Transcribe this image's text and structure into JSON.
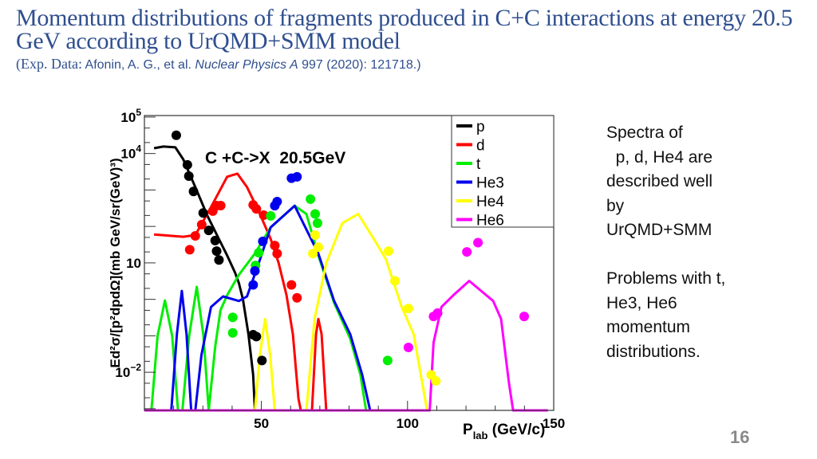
{
  "slide": {
    "title": "Momentum distributions of fragments produced in C+C interactions at energy 20.5 GeV according to UrQMD+SMM model",
    "subtitle_prefix": "(Exp. Data:",
    "subtitle_authors": " Afonin, A. G., et al. ",
    "subtitle_journal": "Nuclear Physics A",
    "subtitle_ref": " 997 (2020): 121718.)",
    "side_text_1": "Spectra of\n  p, d, He4 are\ndescribed well\nby\nUrQMD+SMM",
    "side_text_2": "Problems with t,\nHe3, He6\nmomentum\ndistributions.",
    "page_number": "16"
  },
  "chart_data": {
    "type": "line",
    "annotation": "C +C->X  20.5GeV",
    "xlabel": "P",
    "xlabel_sub": "lab",
    "xlabel_unit": " (GeV/c)",
    "ylabel": "Ed²σ/[p²dpdΩ](mb GeV/sr(GeV)³)",
    "xlim": [
      10,
      150
    ],
    "ylim": [
      0.0009,
      110000
    ],
    "yscale": "log",
    "grid": false,
    "legend_position": "top-right",
    "x_ticks": [
      "50",
      "100",
      "150"
    ],
    "x_tick_values": [
      50,
      100,
      150
    ],
    "y_ticks": [
      {
        "value": 100000,
        "base": "10",
        "exp": "5"
      },
      {
        "value": 10000,
        "base": "10",
        "exp": "4"
      },
      {
        "value": 10,
        "base": "10",
        "exp": ""
      },
      {
        "value": 0.01,
        "base": "10",
        "exp": "−2"
      }
    ],
    "series": [
      {
        "name": "p",
        "color": "#000000",
        "curve": [
          [
            13.3,
            14000
          ],
          [
            16.5,
            15500
          ],
          [
            20.6,
            14800
          ],
          [
            23.3,
            6900
          ],
          [
            27.4,
            1200
          ],
          [
            31.5,
            200
          ],
          [
            35.5,
            45
          ],
          [
            38.3,
            16
          ],
          [
            41,
            5.4
          ],
          [
            42.3,
            2.8
          ],
          [
            43.7,
            1.0
          ],
          [
            45.6,
            0.11
          ],
          [
            47.2,
            0.0085
          ],
          [
            47.8,
            0.0009
          ]
        ],
        "points": [
          [
            20.9,
            31600
          ],
          [
            24.7,
            4900
          ],
          [
            25.2,
            2400
          ],
          [
            26.8,
            910
          ],
          [
            30.1,
            234
          ],
          [
            32,
            78
          ],
          [
            34.2,
            41
          ],
          [
            34.7,
            21
          ],
          [
            35.5,
            12
          ],
          [
            47.2,
            0.107
          ],
          [
            48.3,
            0.095
          ],
          [
            50.2,
            0.021
          ]
        ]
      },
      {
        "name": "d",
        "color": "#ff0000",
        "curve": [
          [
            13.3,
            60
          ],
          [
            23.3,
            52
          ],
          [
            27.4,
            58
          ],
          [
            32.8,
            340
          ],
          [
            38.3,
            2300
          ],
          [
            41.8,
            2800
          ],
          [
            45.1,
            1200
          ],
          [
            49.1,
            260
          ],
          [
            53.2,
            45
          ],
          [
            55.9,
            10
          ],
          [
            58.6,
            1.3
          ],
          [
            60.8,
            0.11
          ],
          [
            62.7,
            0.0019
          ],
          [
            63.5,
            0.0009
          ],
          [
            67.3,
            0.0009
          ],
          [
            68.7,
            0.11
          ],
          [
            69.5,
            0.29
          ],
          [
            70.6,
            0.11
          ],
          [
            72.2,
            0.0009
          ]
        ],
        "points": [
          [
            25.5,
            23
          ],
          [
            27.4,
            55
          ],
          [
            29.6,
            112
          ],
          [
            33.4,
            263
          ],
          [
            34.7,
            372
          ],
          [
            36.1,
            372
          ],
          [
            47.2,
            389
          ],
          [
            48.3,
            302
          ],
          [
            50.8,
            204
          ],
          [
            54.6,
            30
          ],
          [
            55.4,
            18
          ],
          [
            60.3,
            2.5
          ],
          [
            62.2,
            1.1
          ]
        ]
      },
      {
        "name": "t",
        "color": "#00ee00",
        "curve": [
          [
            12.4,
            0.0009
          ],
          [
            14.5,
            0.1
          ],
          [
            17,
            0.93
          ],
          [
            19.5,
            0.1
          ],
          [
            21.5,
            0.0009
          ],
          [
            23,
            0.0009
          ],
          [
            25.3,
            0.1
          ],
          [
            27.9,
            2.2
          ],
          [
            30.2,
            0.1
          ],
          [
            32,
            0.0009
          ],
          [
            34.2,
            0.05
          ],
          [
            36,
            0.5
          ],
          [
            38.3,
            1.3
          ],
          [
            42.3,
            4.7
          ],
          [
            47.8,
            18
          ],
          [
            53.2,
            95
          ],
          [
            61.4,
            370
          ],
          [
            65.4,
            220
          ],
          [
            69.5,
            16
          ],
          [
            74.9,
            0.8
          ],
          [
            80.4,
            0.083
          ],
          [
            83.9,
            0.0085
          ],
          [
            85.8,
            0.0009
          ]
        ],
        "points": [
          [
            40.2,
            0.32
          ],
          [
            40.2,
            0.12
          ],
          [
            48,
            8.5
          ],
          [
            49.1,
            19
          ],
          [
            53.2,
            195
          ],
          [
            66.8,
            560
          ],
          [
            68.4,
            220
          ],
          [
            69.2,
            123
          ],
          [
            93.2,
            0.021
          ]
        ]
      },
      {
        "name": "He3",
        "color": "#0000ee",
        "curve": [
          [
            19.2,
            0.0009
          ],
          [
            21.1,
            0.11
          ],
          [
            22.8,
            1.7
          ],
          [
            24.4,
            0.11
          ],
          [
            26,
            0.0009
          ],
          [
            27.4,
            0.0009
          ],
          [
            29.5,
            0.03
          ],
          [
            32.8,
            0.62
          ],
          [
            36.9,
            1.2
          ],
          [
            42.3,
            0.9
          ],
          [
            45.1,
            1.2
          ],
          [
            49.1,
            9.8
          ],
          [
            53.2,
            95
          ],
          [
            61.4,
            370
          ],
          [
            69.5,
            18
          ],
          [
            74.9,
            0.9
          ],
          [
            80.4,
            0.11
          ],
          [
            84.5,
            0.0085
          ],
          [
            87.2,
            0.0009
          ]
        ],
        "points": [
          [
            47.2,
            2.5
          ],
          [
            47.8,
            6
          ],
          [
            50.5,
            39
          ],
          [
            54.6,
            370
          ],
          [
            55.4,
            480
          ],
          [
            60.3,
            2100
          ],
          [
            62.2,
            2300
          ]
        ]
      },
      {
        "name": "He4",
        "color": "#ffff00",
        "curve": [
          [
            47.8,
            0.0009
          ],
          [
            49.5,
            0.03
          ],
          [
            51.3,
            0.29
          ],
          [
            53,
            0.03
          ],
          [
            54.6,
            0.0009
          ],
          [
            65.4,
            0.0009
          ],
          [
            68.2,
            0.29
          ],
          [
            72.2,
            10
          ],
          [
            77.7,
            123
          ],
          [
            83.1,
            220
          ],
          [
            88.5,
            45
          ],
          [
            92.6,
            12.6
          ],
          [
            98,
            0.62
          ],
          [
            102.1,
            0.11
          ],
          [
            106.7,
            0.0009
          ]
        ],
        "points": [
          [
            68.4,
            58
          ],
          [
            67.6,
            18
          ],
          [
            69.5,
            27
          ],
          [
            93.5,
            21
          ],
          [
            95.7,
            3.2
          ],
          [
            100.3,
            0.56
          ],
          [
            108.1,
            0.0085
          ],
          [
            109.7,
            0.0058
          ]
        ]
      },
      {
        "name": "He6",
        "color": "#ff00ff",
        "curve": [
          [
            10,
            0.0009
          ],
          [
            107.6,
            0.0009
          ],
          [
            108.9,
            0.065
          ],
          [
            111.6,
            0.62
          ],
          [
            115.7,
            1.3
          ],
          [
            121.1,
            3.2
          ],
          [
            125.2,
            1.7
          ],
          [
            129.3,
            0.9
          ],
          [
            132,
            0.29
          ],
          [
            134.7,
            0.0051
          ],
          [
            136.1,
            0.0009
          ],
          [
            148,
            0.0009
          ]
        ],
        "points": [
          [
            120.3,
            20
          ],
          [
            124.1,
            36
          ],
          [
            139.9,
            0.34
          ],
          [
            108.9,
            0.34
          ],
          [
            110.3,
            0.42
          ],
          [
            100.3,
            0.048
          ]
        ]
      }
    ]
  }
}
